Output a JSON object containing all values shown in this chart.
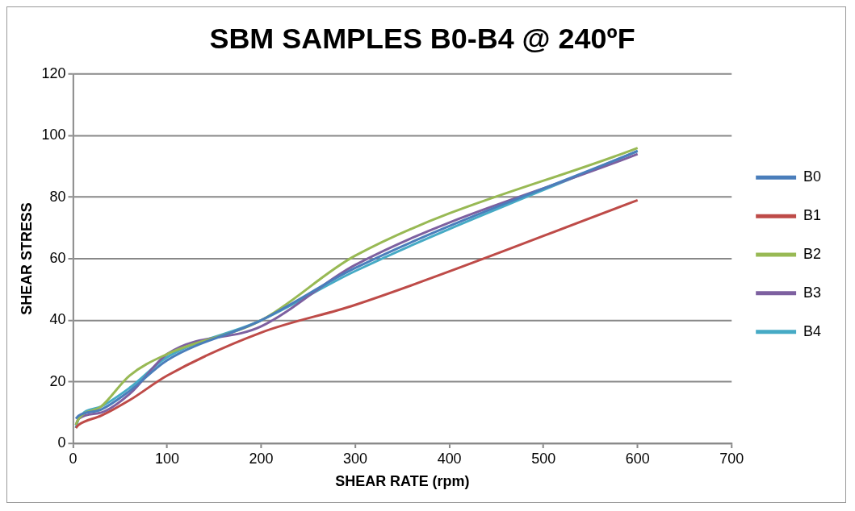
{
  "chart_data": {
    "type": "line",
    "title": "SBM SAMPLES B0-B4 @ 240ºF",
    "xlabel": "SHEAR RATE (rpm)",
    "ylabel": "SHEAR STRESS",
    "x": [
      3,
      6,
      30,
      60,
      100,
      200,
      300,
      600
    ],
    "series": [
      {
        "name": "B0",
        "color": "#4a7ebb",
        "values": [
          8,
          9,
          11,
          17,
          27,
          40,
          57,
          95
        ]
      },
      {
        "name": "B1",
        "color": "#be4b48",
        "values": [
          5,
          6,
          9,
          14,
          22,
          36,
          45,
          79
        ]
      },
      {
        "name": "B2",
        "color": "#98b954",
        "values": [
          6,
          8,
          12,
          22,
          29,
          40,
          61,
          96
        ]
      },
      {
        "name": "B3",
        "color": "#7d60a0",
        "values": [
          6,
          8,
          10,
          16,
          29,
          38,
          58,
          94
        ]
      },
      {
        "name": "B4",
        "color": "#46aac5",
        "values": [
          5,
          8,
          12,
          18,
          28,
          40,
          56,
          95
        ]
      }
    ],
    "xlim": [
      0,
      700
    ],
    "xticks": [
      0,
      100,
      200,
      300,
      400,
      500,
      600,
      700
    ],
    "ylim": [
      0,
      120
    ],
    "yticks": [
      0,
      20,
      40,
      60,
      80,
      100,
      120
    ],
    "grid": "y",
    "legend": "right",
    "marker": "none",
    "line_style": "solid"
  }
}
